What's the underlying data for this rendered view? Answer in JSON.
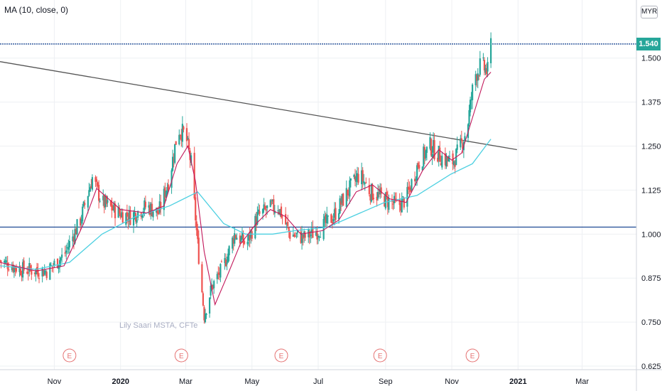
{
  "indicator_label": "MA (10, close, 0)",
  "currency": "MYR",
  "last_price_label": "1.540",
  "watermark": "Lily Saari  MSTA, CFTe",
  "earnings_marker": "E",
  "colors": {
    "up": "#26a69a",
    "down": "#ef5350",
    "ma10": "#c2185b",
    "ma50": "#4dd0e1",
    "trendline": "#555555",
    "hline": "#0d3c8c",
    "grid": "#eef0f3"
  },
  "chart_data": {
    "type": "candlestick",
    "y_scale": "linear",
    "ylim": [
      0.615,
      1.665
    ],
    "y_ticks": [
      0.625,
      0.75,
      0.875,
      1.0,
      1.125,
      1.25,
      1.375,
      1.5,
      1.54
    ],
    "y_tick_labels": [
      "0.625",
      "0.750",
      "0.875",
      "1.000",
      "1.125",
      "1.250",
      "1.375",
      "1.500",
      "1.540"
    ],
    "x_ticks": [
      {
        "label": "Nov",
        "date": "2019-11-01",
        "bold": false
      },
      {
        "label": "2020",
        "date": "2020-01-01",
        "bold": true
      },
      {
        "label": "Mar",
        "date": "2020-03-01",
        "bold": false
      },
      {
        "label": "May",
        "date": "2020-05-01",
        "bold": false
      },
      {
        "label": "Jul",
        "date": "2020-07-01",
        "bold": false
      },
      {
        "label": "Sep",
        "date": "2020-09-01",
        "bold": false
      },
      {
        "label": "Nov",
        "date": "2020-11-01",
        "bold": false
      },
      {
        "label": "2021",
        "date": "2021-01-01",
        "bold": true
      },
      {
        "label": "Mar",
        "date": "2021-03-01",
        "bold": false
      }
    ],
    "xlim": [
      "2019-09-12",
      "2021-04-20"
    ],
    "close_path": [
      [
        "2019-09-12",
        0.925
      ],
      [
        "2019-10-01",
        0.9
      ],
      [
        "2019-10-25",
        0.895
      ],
      [
        "2019-11-10",
        0.94
      ],
      [
        "2019-11-25",
        1.04
      ],
      [
        "2019-12-06",
        1.16
      ],
      [
        "2019-12-15",
        1.09
      ],
      [
        "2019-12-31",
        1.06
      ],
      [
        "2020-01-10",
        1.05
      ],
      [
        "2020-01-25",
        1.08
      ],
      [
        "2020-02-05",
        1.06
      ],
      [
        "2020-02-15",
        1.16
      ],
      [
        "2020-02-23",
        1.3
      ],
      [
        "2020-03-01",
        1.28
      ],
      [
        "2020-03-06",
        1.2
      ],
      [
        "2020-03-12",
        0.97
      ],
      [
        "2020-03-18",
        0.77
      ],
      [
        "2020-03-25",
        0.85
      ],
      [
        "2020-04-05",
        0.91
      ],
      [
        "2020-04-15",
        1.0
      ],
      [
        "2020-04-26",
        0.97
      ],
      [
        "2020-05-06",
        1.05
      ],
      [
        "2020-05-15",
        1.07
      ],
      [
        "2020-05-25",
        1.08
      ],
      [
        "2020-06-05",
        1.0
      ],
      [
        "2020-06-18",
        0.99
      ],
      [
        "2020-07-01",
        1.01
      ],
      [
        "2020-07-15",
        1.05
      ],
      [
        "2020-07-28",
        1.12
      ],
      [
        "2020-08-08",
        1.17
      ],
      [
        "2020-08-18",
        1.12
      ],
      [
        "2020-08-31",
        1.1
      ],
      [
        "2020-09-12",
        1.08
      ],
      [
        "2020-09-20",
        1.1
      ],
      [
        "2020-10-01",
        1.2
      ],
      [
        "2020-10-12",
        1.25
      ],
      [
        "2020-10-22",
        1.22
      ],
      [
        "2020-11-01",
        1.2
      ],
      [
        "2020-11-08",
        1.24
      ],
      [
        "2020-11-15",
        1.3
      ],
      [
        "2020-11-22",
        1.45
      ],
      [
        "2020-11-28",
        1.48
      ],
      [
        "2020-12-04",
        1.46
      ],
      [
        "2020-12-07",
        1.54
      ]
    ],
    "ma10": [
      [
        "2019-09-12",
        0.92
      ],
      [
        "2019-10-15",
        0.895
      ],
      [
        "2019-11-10",
        0.91
      ],
      [
        "2019-11-28",
        1.03
      ],
      [
        "2019-12-10",
        1.13
      ],
      [
        "2020-01-01",
        1.07
      ],
      [
        "2020-01-25",
        1.06
      ],
      [
        "2020-02-10",
        1.08
      ],
      [
        "2020-02-22",
        1.2
      ],
      [
        "2020-03-03",
        1.25
      ],
      [
        "2020-03-10",
        1.15
      ],
      [
        "2020-03-18",
        0.95
      ],
      [
        "2020-03-28",
        0.8
      ],
      [
        "2020-04-08",
        0.88
      ],
      [
        "2020-04-20",
        0.97
      ],
      [
        "2020-05-05",
        1.03
      ],
      [
        "2020-05-18",
        1.07
      ],
      [
        "2020-06-01",
        1.05
      ],
      [
        "2020-06-15",
        1.0
      ],
      [
        "2020-07-05",
        1.01
      ],
      [
        "2020-07-20",
        1.04
      ],
      [
        "2020-08-05",
        1.12
      ],
      [
        "2020-08-20",
        1.14
      ],
      [
        "2020-09-05",
        1.1
      ],
      [
        "2020-09-20",
        1.09
      ],
      [
        "2020-10-05",
        1.18
      ],
      [
        "2020-10-20",
        1.24
      ],
      [
        "2020-11-01",
        1.21
      ],
      [
        "2020-11-10",
        1.23
      ],
      [
        "2020-11-20",
        1.33
      ],
      [
        "2020-12-01",
        1.44
      ],
      [
        "2020-12-07",
        1.46
      ]
    ],
    "ma50": [
      [
        "2019-09-12",
        0.91
      ],
      [
        "2019-10-15",
        0.9
      ],
      [
        "2019-11-15",
        0.92
      ],
      [
        "2019-12-15",
        1.0
      ],
      [
        "2020-01-15",
        1.05
      ],
      [
        "2020-02-15",
        1.08
      ],
      [
        "2020-03-12",
        1.12
      ],
      [
        "2020-04-05",
        1.03
      ],
      [
        "2020-04-25",
        1.0
      ],
      [
        "2020-05-20",
        1.0
      ],
      [
        "2020-06-10",
        1.01
      ],
      [
        "2020-07-10",
        1.02
      ],
      [
        "2020-08-01",
        1.05
      ],
      [
        "2020-08-31",
        1.09
      ],
      [
        "2020-09-30",
        1.11
      ],
      [
        "2020-10-31",
        1.17
      ],
      [
        "2020-11-20",
        1.2
      ],
      [
        "2020-12-07",
        1.27
      ]
    ],
    "trendline": [
      [
        "2019-09-12",
        1.49
      ],
      [
        "2020-12-31",
        1.24
      ]
    ],
    "horizontal_lines": [
      1.54,
      1.02
    ],
    "last_price": 1.54,
    "earnings_dates": [
      "2019-11-15",
      "2020-02-26",
      "2020-05-28",
      "2020-08-27",
      "2020-11-20"
    ]
  }
}
